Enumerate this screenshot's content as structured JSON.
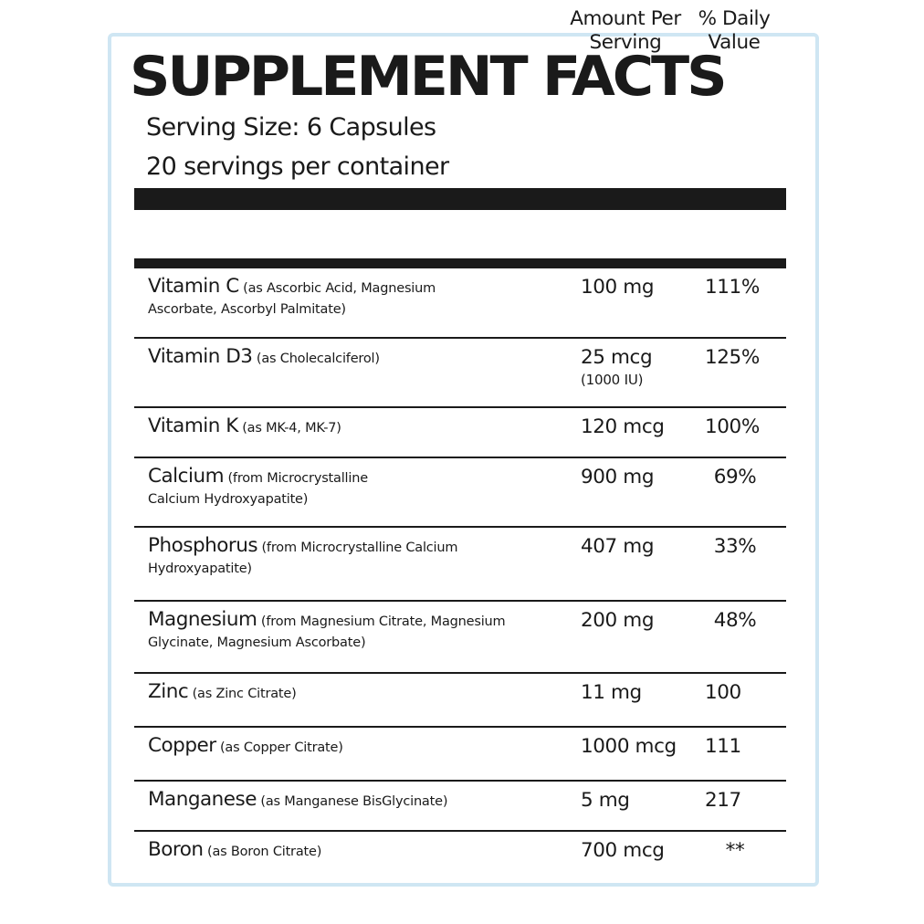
{
  "label": {
    "title": "SUPPLEMENT FACTS",
    "serving_size": "Serving Size: 6 Capsules",
    "servings_per_container": "20 servings per container",
    "column_amount": "Amount Per\nServing",
    "column_daily_value": "% Daily\nValue",
    "border_color": "#cfe6f3",
    "text_color": "#1a1a1a"
  },
  "rows": [
    {
      "name": "Vitamin C",
      "source": "(as Ascorbic Acid, Magnesium Ascorbate, Ascorbyl Palmitate)",
      "amount": "100 mg",
      "amount_note": "",
      "daily_value": "111%"
    },
    {
      "name": "Vitamin D3",
      "source": "(as Cholecalciferol)",
      "amount": "25 mcg",
      "amount_note": "(1000 IU)",
      "daily_value": "125%"
    },
    {
      "name": "Vitamin K",
      "source": "(as MK-4, MK-7)",
      "amount": "120 mcg",
      "amount_note": "",
      "daily_value": "100%"
    },
    {
      "name": "Calcium",
      "source": "(from Microcrystalline Calcium Hydroxyapatite)",
      "amount": "900 mg",
      "amount_note": "",
      "daily_value": "69%"
    },
    {
      "name": "Phosphorus",
      "source": "(from Microcrystalline Calcium Hydroxyapatite)",
      "amount": "407 mg",
      "amount_note": "",
      "daily_value": "33%"
    },
    {
      "name": "Magnesium",
      "source": "(from Magnesium Citrate, Magnesium Glycinate, Magnesium Ascorbate)",
      "amount": "200 mg",
      "amount_note": "",
      "daily_value": "48%"
    },
    {
      "name": "Zinc",
      "source": "(as Zinc Citrate)",
      "amount": "11 mg",
      "amount_note": "",
      "daily_value": "100"
    },
    {
      "name": "Copper",
      "source": "(as Copper Citrate)",
      "amount": "1000 mcg",
      "amount_note": "",
      "daily_value": "111"
    },
    {
      "name": "Manganese",
      "source": "(as Manganese BisGlycinate)",
      "amount": "5 mg",
      "amount_note": "",
      "daily_value": "217"
    },
    {
      "name": "Boron",
      "source": "(as Boron Citrate)",
      "amount": "700 mcg",
      "amount_note": "",
      "daily_value": "**"
    }
  ]
}
